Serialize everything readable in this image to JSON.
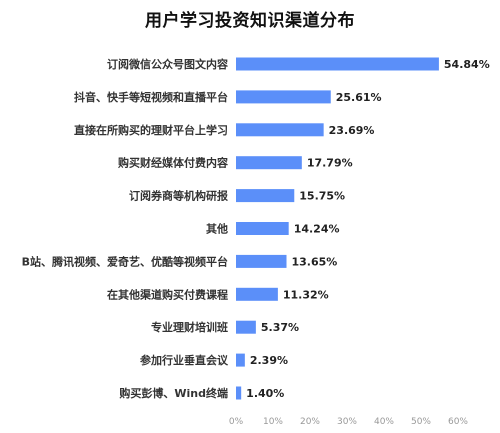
{
  "chart_data": {
    "type": "bar",
    "orientation": "horizontal",
    "title": "用户学习投资知识渠道分布",
    "xlabel": "",
    "ylabel": "",
    "categories": [
      "订阅微信公众号图文内容",
      "抖音、快手等短视频和直播平台",
      "直接在所购买的理财平台上学习",
      "购买财经媒体付费内容",
      "订阅券商等机构研报",
      "其他",
      "B站、腾讯视频、爱奇艺、优酷等视频平台",
      "在其他渠道购买付费课程",
      "专业理财培训班",
      "参加行业垂直会议",
      "购买彭博、Wind终端"
    ],
    "values": [
      54.84,
      25.61,
      23.69,
      17.79,
      15.75,
      14.24,
      13.65,
      11.32,
      5.37,
      2.39,
      1.4
    ],
    "value_labels": [
      "54.84%",
      "25.61%",
      "23.69%",
      "17.79%",
      "15.75%",
      "14.24%",
      "13.65%",
      "11.32%",
      "5.37%",
      "2.39%",
      "1.40%"
    ],
    "xlim": [
      0,
      60
    ],
    "x_ticks": [
      "0%",
      "10%",
      "20%",
      "30%",
      "40%",
      "50%",
      "60%"
    ],
    "grid": false,
    "legend": "none",
    "bar_color": "#5B8FF9"
  }
}
